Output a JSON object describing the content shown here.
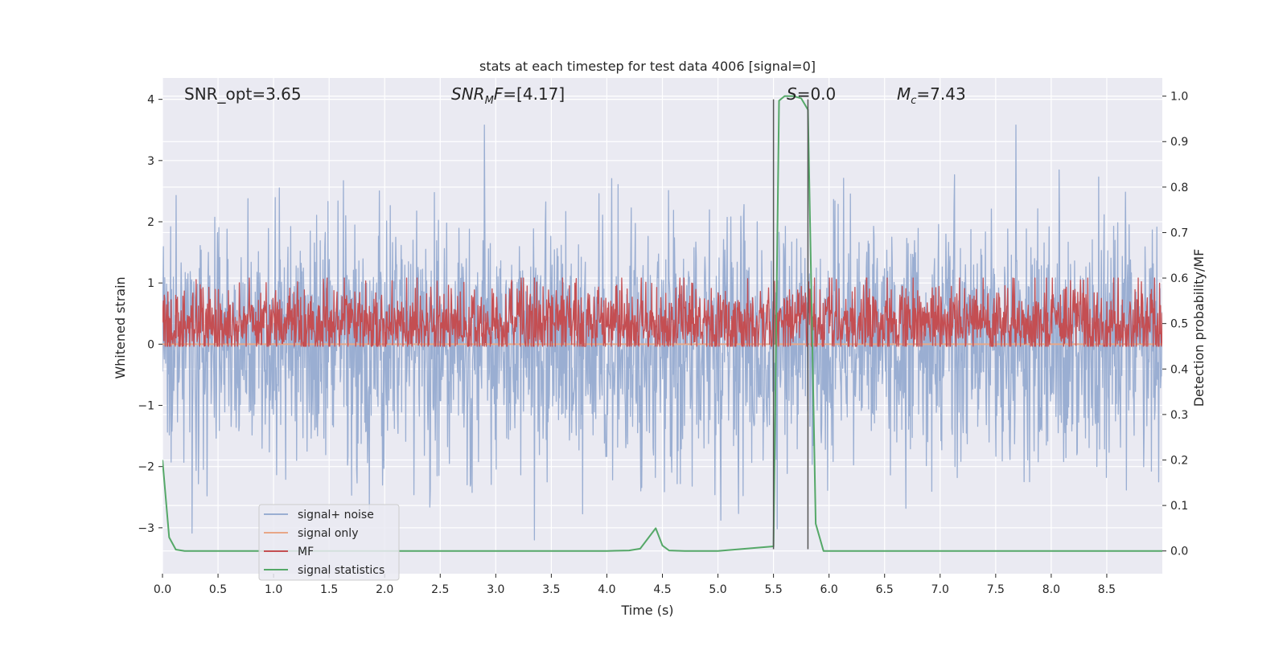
{
  "chart_data": {
    "type": "line",
    "title": "stats at each timestep for test data 4006 [signal=0]",
    "xlabel": "Time (s)",
    "ylabel_left": "Whitened strain",
    "ylabel_right": "Detection probability/MF",
    "xlim": [
      0.0,
      9.0
    ],
    "ylim_left": [
      -3.75,
      4.35
    ],
    "ylim_right": [
      -0.05,
      1.04
    ],
    "x_ticks": [
      0.0,
      0.5,
      1.0,
      1.5,
      2.0,
      2.5,
      3.0,
      3.5,
      4.0,
      4.5,
      5.0,
      5.5,
      6.0,
      6.5,
      7.0,
      7.5,
      8.0,
      8.5
    ],
    "x_tick_labels": [
      "0.0",
      "0.5",
      "1.0",
      "1.5",
      "2.0",
      "2.5",
      "3.0",
      "3.5",
      "4.0",
      "4.5",
      "5.0",
      "5.5",
      "6.0",
      "6.5",
      "7.0",
      "7.5",
      "8.0",
      "8.5"
    ],
    "y_left_ticks": [
      -3,
      -2,
      -1,
      0,
      1,
      2,
      3,
      4
    ],
    "y_left_tick_labels": [
      "−3",
      "−2",
      "−1",
      "0",
      "1",
      "2",
      "3",
      "4"
    ],
    "y_right_ticks": [
      0.0,
      0.1,
      0.2,
      0.3,
      0.4,
      0.5,
      0.6,
      0.7,
      0.8,
      0.9,
      1.0
    ],
    "y_right_tick_labels": [
      "0.0",
      "0.1",
      "0.2",
      "0.3",
      "0.4",
      "0.5",
      "0.6",
      "0.7",
      "0.8",
      "0.9",
      "1.0"
    ],
    "annotations": [
      {
        "id": "snr-opt",
        "text": "SNR_opt=3.65"
      },
      {
        "id": "snr-mf",
        "base": "SNR",
        "sub": "M",
        "rest": "F=[4.17]"
      },
      {
        "id": "s-stat",
        "base": "S",
        "rest": "=0.0"
      },
      {
        "id": "chirp-mass",
        "base": "M",
        "sub": "c",
        "rest": "=7.43"
      }
    ],
    "event_window": {
      "start": 5.5,
      "end": 5.81,
      "ymin": -3.35,
      "ymax": 4.0
    },
    "legend": {
      "position": "lower-left",
      "entries": [
        {
          "label": "signal+ noise",
          "color": "#9aaed2"
        },
        {
          "label": "signal only",
          "color": "#e8a787"
        },
        {
          "label": "MF",
          "color": "#c44e52"
        },
        {
          "label": "signal statistics",
          "color": "#55a868"
        }
      ]
    },
    "series": [
      {
        "name": "signal+ noise",
        "axis": "left",
        "color": "#9aaed2",
        "kind": "noise",
        "n_samples": 2200,
        "mean": 0.0,
        "std": 1.0,
        "min": -3.35,
        "max": 3.58
      },
      {
        "name": "signal only",
        "axis": "left",
        "color": "#e8a787",
        "x": [
          0.0,
          9.0
        ],
        "y": [
          0.0,
          0.0
        ]
      },
      {
        "name": "MF",
        "axis": "right",
        "color": "#c44e52",
        "kind": "noise",
        "n_samples": 2200,
        "mean": 0.5,
        "std": 0.045,
        "min": 0.45,
        "max": 0.6
      },
      {
        "name": "signal statistics",
        "axis": "right",
        "color": "#55a868",
        "x": [
          0.0,
          0.06,
          0.12,
          0.2,
          0.5,
          1.0,
          1.5,
          2.0,
          2.5,
          3.0,
          3.5,
          4.0,
          4.2,
          4.3,
          4.44,
          4.5,
          4.56,
          4.7,
          5.0,
          5.5,
          5.55,
          5.6,
          5.68,
          5.75,
          5.81,
          5.88,
          5.95,
          6.5,
          7.0,
          7.5,
          8.0,
          8.5,
          9.0
        ],
        "y": [
          0.2,
          0.03,
          0.003,
          0.0,
          0.0,
          0.0,
          0.0,
          0.0,
          0.0,
          0.0,
          0.0,
          0.0,
          0.001,
          0.005,
          0.05,
          0.012,
          0.001,
          0.0,
          0.0,
          0.01,
          0.99,
          1.0,
          1.0,
          0.995,
          0.97,
          0.06,
          0.0,
          0.0,
          0.0,
          0.0,
          0.0,
          0.0,
          0.0
        ]
      }
    ]
  }
}
